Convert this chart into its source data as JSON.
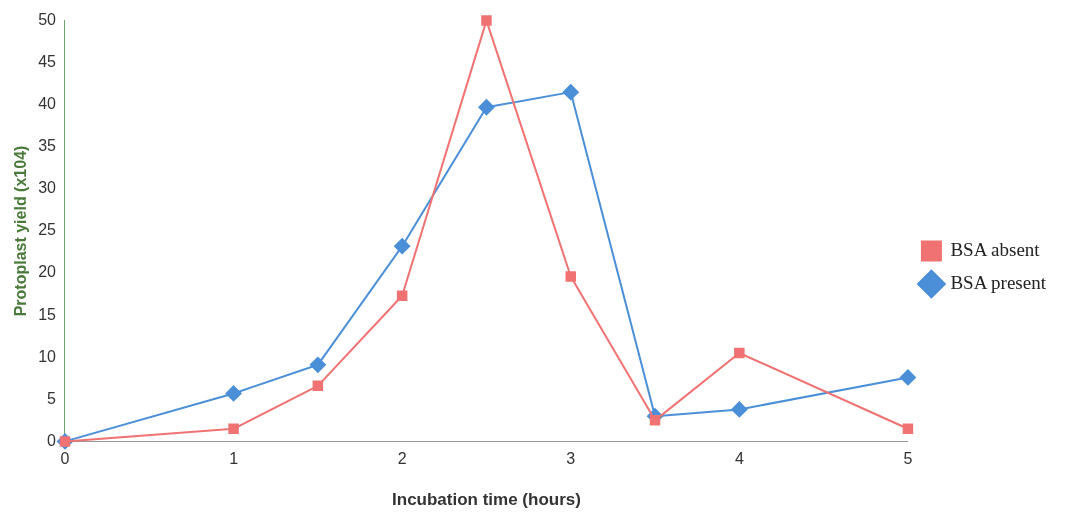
{
  "chart_data": {
    "type": "line",
    "xlabel": "Incubation time (hours)",
    "ylabel": "Protoplast yield (x104)",
    "x": [
      0,
      1,
      1.5,
      2,
      2.5,
      3,
      3.5,
      4,
      5
    ],
    "series": [
      {
        "name": "BSA present",
        "color": "#4a8fd8",
        "marker": "diamond",
        "values": [
          0,
          5.7,
          9.1,
          23.2,
          39.7,
          41.5,
          3.0,
          3.8,
          7.6
        ]
      },
      {
        "name": "BSA absent",
        "color": "#f07272",
        "marker": "square",
        "values": [
          0,
          1.5,
          6.6,
          17.3,
          50,
          19.6,
          2.5,
          10.5,
          1.5
        ]
      }
    ],
    "xlim": [
      0,
      5
    ],
    "xticks": [
      0,
      1,
      2,
      3,
      4,
      5
    ],
    "ylim": [
      0,
      50
    ],
    "yticks": [
      0,
      5,
      10,
      15,
      20,
      25,
      30,
      35,
      40,
      45,
      50
    ],
    "grid": false,
    "legend": "right",
    "line_style": "solid"
  }
}
